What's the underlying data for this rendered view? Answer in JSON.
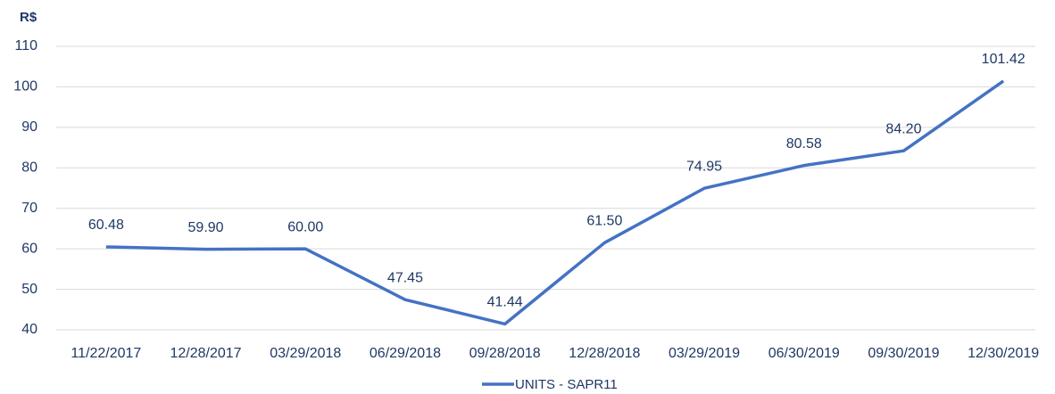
{
  "chart_data": {
    "type": "line",
    "y_axis_label": "R$",
    "categories": [
      "11/22/2017",
      "12/28/2017",
      "03/29/2018",
      "06/29/2018",
      "09/28/2018",
      "12/28/2018",
      "03/29/2019",
      "06/30/2019",
      "09/30/2019",
      "12/30/2019"
    ],
    "series": [
      {
        "name": "UNITS - SAPR11",
        "color": "#4472c4",
        "values": [
          60.48,
          59.9,
          60,
          47.45,
          41.44,
          61.5,
          74.95,
          80.58,
          84.2,
          101.42
        ],
        "value_labels": [
          "60.48",
          "59.90",
          "60.00",
          "47.45",
          "41.44",
          "61.50",
          "74.95",
          "80.58",
          "84.20",
          "101.42"
        ]
      }
    ],
    "ylim": [
      40,
      110
    ],
    "yticks": [
      40,
      50,
      60,
      70,
      80,
      90,
      100,
      110
    ],
    "grid": true,
    "legend": "bottom"
  }
}
